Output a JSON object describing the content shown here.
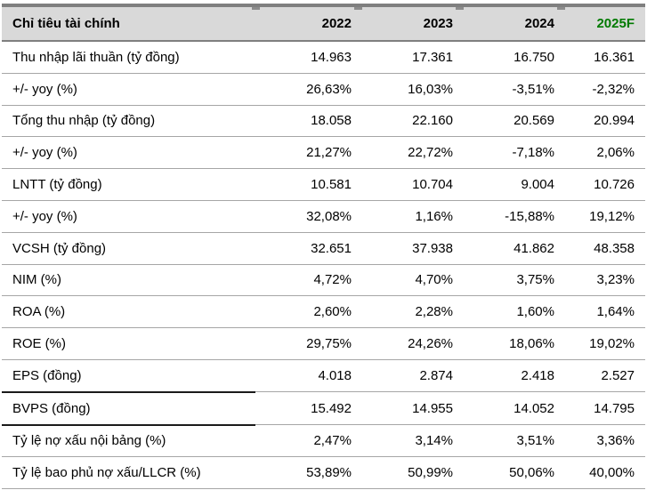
{
  "header": {
    "label": "Chỉ tiêu tài chính",
    "years": [
      "2022",
      "2023",
      "2024",
      "2025F"
    ]
  },
  "rows": [
    {
      "label": "Thu nhập lãi thuần (tỷ đồng)",
      "values": [
        "14.963",
        "17.361",
        "16.750",
        "16.361"
      ]
    },
    {
      "label": "+/- yoy (%)",
      "values": [
        "26,63%",
        "16,03%",
        "-3,51%",
        "-2,32%"
      ]
    },
    {
      "label": "Tổng thu nhập (tỷ đồng)",
      "values": [
        "18.058",
        "22.160",
        "20.569",
        "20.994"
      ]
    },
    {
      "label": "+/- yoy (%)",
      "values": [
        "21,27%",
        "22,72%",
        "-7,18%",
        "2,06%"
      ]
    },
    {
      "label": "LNTT (tỷ đồng)",
      "values": [
        "10.581",
        "10.704",
        "9.004",
        "10.726"
      ]
    },
    {
      "label": "+/- yoy (%)",
      "values": [
        "32,08%",
        "1,16%",
        "-15,88%",
        "19,12%"
      ]
    },
    {
      "label": "VCSH (tỷ đồng)",
      "values": [
        "32.651",
        "37.938",
        "41.862",
        "48.358"
      ]
    },
    {
      "label": "NIM (%)",
      "values": [
        "4,72%",
        "4,70%",
        "3,75%",
        "3,23%"
      ]
    },
    {
      "label": "ROA (%)",
      "values": [
        "2,60%",
        "2,28%",
        "1,60%",
        "1,64%"
      ]
    },
    {
      "label": "ROE (%)",
      "values": [
        "29,75%",
        "24,26%",
        "18,06%",
        "19,02%"
      ]
    },
    {
      "label": "EPS (đồng)",
      "values": [
        "4.018",
        "2.874",
        "2.418",
        "2.527"
      ]
    },
    {
      "label": "BVPS (đồng)",
      "values": [
        "15.492",
        "14.955",
        "14.052",
        "14.795"
      ]
    },
    {
      "label": "Tỷ lệ nợ xấu nội bảng (%)",
      "values": [
        "2,47%",
        "3,14%",
        "3,51%",
        "3,36%"
      ]
    },
    {
      "label": "Tỷ lệ bao phủ nợ xấu/LLCR (%)",
      "values": [
        "53,89%",
        "50,99%",
        "50,06%",
        "40,00%"
      ]
    }
  ],
  "colors": {
    "forecast_green": "#007a00",
    "header_bg": "#d9d9d9",
    "dark_border": "#7f7f7f",
    "row_divider": "#a6a6a6",
    "text": "#000000"
  },
  "chart_data": {
    "type": "table",
    "title": "Chỉ tiêu tài chính",
    "columns": [
      "Chỉ tiêu tài chính",
      "2022",
      "2023",
      "2024",
      "2025F"
    ],
    "rows": [
      [
        "Thu nhập lãi thuần (tỷ đồng)",
        "14.963",
        "17.361",
        "16.750",
        "16.361"
      ],
      [
        "+/- yoy (%)",
        "26,63%",
        "16,03%",
        "-3,51%",
        "-2,32%"
      ],
      [
        "Tổng thu nhập (tỷ đồng)",
        "18.058",
        "22.160",
        "20.569",
        "20.994"
      ],
      [
        "+/- yoy (%)",
        "21,27%",
        "22,72%",
        "-7,18%",
        "2,06%"
      ],
      [
        "LNTT (tỷ đồng)",
        "10.581",
        "10.704",
        "9.004",
        "10.726"
      ],
      [
        "+/- yoy (%)",
        "32,08%",
        "1,16%",
        "-15,88%",
        "19,12%"
      ],
      [
        "VCSH (tỷ đồng)",
        "32.651",
        "37.938",
        "41.862",
        "48.358"
      ],
      [
        "NIM (%)",
        "4,72%",
        "4,70%",
        "3,75%",
        "3,23%"
      ],
      [
        "ROA (%)",
        "2,60%",
        "2,28%",
        "1,60%",
        "1,64%"
      ],
      [
        "ROE (%)",
        "29,75%",
        "24,26%",
        "18,06%",
        "19,02%"
      ],
      [
        "EPS (đồng)",
        "4.018",
        "2.874",
        "2.418",
        "2.527"
      ],
      [
        "BVPS (đồng)",
        "15.492",
        "14.955",
        "14.052",
        "14.795"
      ],
      [
        "Tỷ lệ nợ xấu nội bảng (%)",
        "2,47%",
        "3,14%",
        "3,51%",
        "3,36%"
      ],
      [
        "Tỷ lệ bao phủ nợ xấu/LLCR (%)",
        "53,89%",
        "50,99%",
        "50,06%",
        "40,00%"
      ]
    ]
  }
}
